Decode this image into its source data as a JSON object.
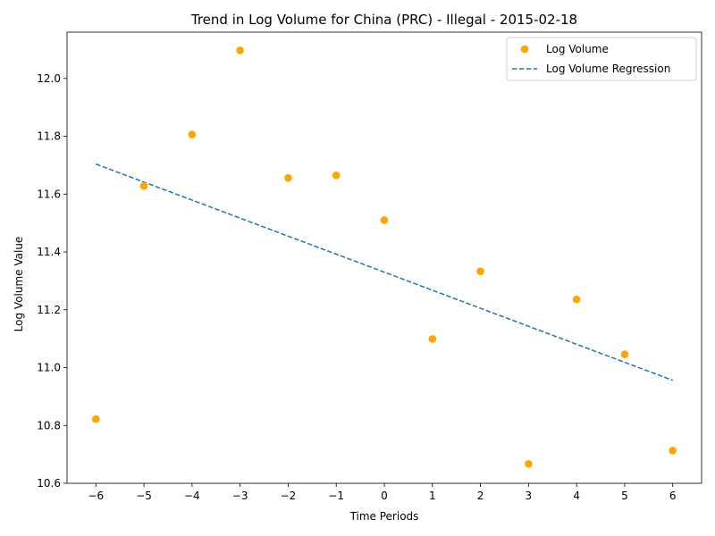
{
  "chart_data": {
    "type": "scatter",
    "title": "Trend in Log Volume for China (PRC) - Illegal - 2015-02-18",
    "xlabel": "Time Periods",
    "ylabel": "Log Volume Value",
    "xlim": [
      -6.6,
      6.6
    ],
    "ylim": [
      10.6,
      12.16
    ],
    "xticks": [
      -6,
      -5,
      -4,
      -3,
      -2,
      -1,
      0,
      1,
      2,
      3,
      4,
      5,
      6
    ],
    "yticks": [
      10.6,
      10.8,
      11.0,
      11.2,
      11.4,
      11.6,
      11.8,
      12.0
    ],
    "ytick_labels": [
      "10.6",
      "10.8",
      "11.0",
      "11.2",
      "11.4",
      "11.6",
      "11.8",
      "12.0"
    ],
    "xtick_labels": [
      "−6",
      "−5",
      "−4",
      "−3",
      "−2",
      "−1",
      "0",
      "1",
      "2",
      "3",
      "4",
      "5",
      "6"
    ],
    "grid": false,
    "legend_position": "top-right",
    "series": [
      {
        "name": "Log Volume",
        "kind": "scatter",
        "color": "#ffa500",
        "x": [
          -6,
          -5,
          -4,
          -3,
          -2,
          -1,
          0,
          1,
          2,
          3,
          4,
          5,
          6
        ],
        "y": [
          10.822,
          11.628,
          11.806,
          12.097,
          11.656,
          11.665,
          11.51,
          11.099,
          11.333,
          10.667,
          11.236,
          11.046,
          10.713
        ]
      },
      {
        "name": "Log Volume Regression",
        "kind": "line",
        "style": "dashed",
        "color": "#1f77b4",
        "x": [
          -6,
          6
        ],
        "y": [
          11.704,
          10.956
        ]
      }
    ]
  }
}
